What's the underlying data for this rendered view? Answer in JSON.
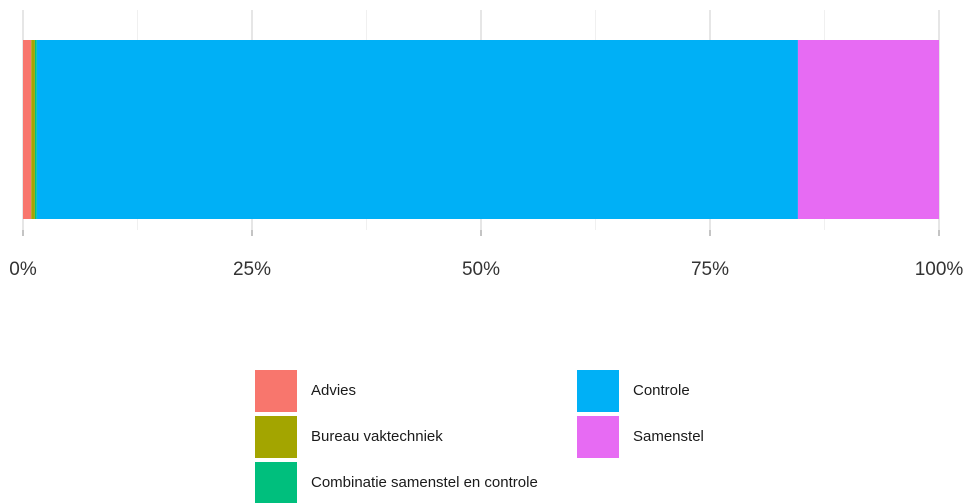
{
  "chart_data": {
    "type": "bar",
    "orientation": "horizontal",
    "stacked": true,
    "series": [
      {
        "name": "Advies",
        "color": "#f8766d",
        "values": [
          0.9
        ]
      },
      {
        "name": "Bureau vaktechniek",
        "color": "#a3a500",
        "values": [
          0.4
        ]
      },
      {
        "name": "Combinatie samenstel en controle",
        "color": "#00bf7d",
        "values": [
          0.2
        ]
      },
      {
        "name": "Controle",
        "color": "#00b0f6",
        "values": [
          83.1
        ]
      },
      {
        "name": "Samenstel",
        "color": "#e76bf3",
        "values": [
          15.4
        ]
      }
    ],
    "xlim": [
      0,
      100
    ],
    "xticks": [
      {
        "value": 0,
        "label": "0%"
      },
      {
        "value": 25,
        "label": "25%"
      },
      {
        "value": 50,
        "label": "50%"
      },
      {
        "value": 75,
        "label": "75%"
      },
      {
        "value": 100,
        "label": "100%"
      }
    ],
    "xminorticks": [
      12.5,
      37.5,
      62.5,
      87.5
    ],
    "grid": true,
    "legend": "bottom"
  }
}
